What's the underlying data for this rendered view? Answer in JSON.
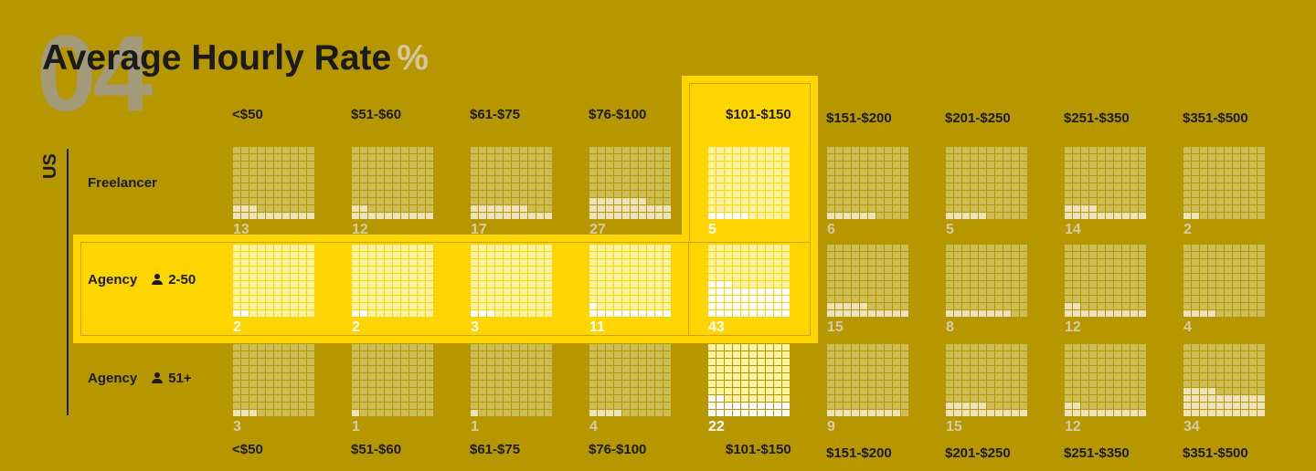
{
  "header": {
    "section_number": "04",
    "title": "Average Hourly Rate",
    "title_unit": "%"
  },
  "colors": {
    "background": "#b79700",
    "highlight": "#ffd500",
    "filled_cell": "#ffffff",
    "empty_cell_normal": "#cdbd57",
    "empty_cell_highlight": "#fff2a0",
    "filled_cell_normal": "#ece3bd"
  },
  "chart_data": {
    "type": "waffle",
    "region": "US",
    "categories": [
      "<$50",
      "$51-$60",
      "$61-$75",
      "$76-$100",
      "$101-$150",
      "$151-$200",
      "$201-$250",
      "$251-$350",
      "$351-$500"
    ],
    "highlighted_category": "$101-$150",
    "highlighted_series": "Agency 2-50",
    "grid": {
      "columns": 10,
      "rows": 10,
      "total": 100
    },
    "series": [
      {
        "name": "Freelancer",
        "label": "Freelancer",
        "size": "",
        "values": [
          13,
          12,
          17,
          27,
          5,
          6,
          5,
          14,
          2
        ]
      },
      {
        "name": "Agency 2-50",
        "label": "Agency",
        "size": "2-50",
        "values": [
          2,
          2,
          3,
          11,
          43,
          15,
          8,
          12,
          4
        ]
      },
      {
        "name": "Agency 51+",
        "label": "Agency",
        "size": "51+",
        "values": [
          3,
          1,
          1,
          4,
          22,
          9,
          15,
          12,
          34
        ]
      }
    ]
  }
}
